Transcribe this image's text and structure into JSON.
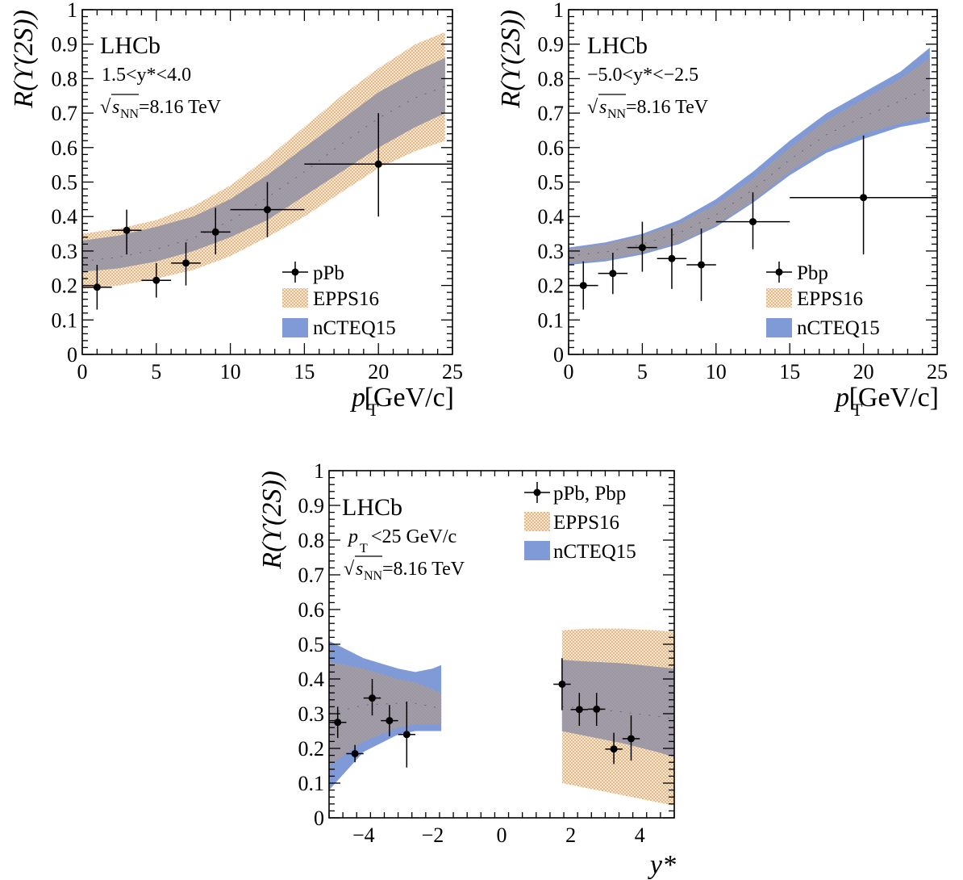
{
  "colors": {
    "epps16": "#e3b98a",
    "epps16_bg": "#f6e7d3",
    "nctet15": "#7f9ad6",
    "overlap": "#a39da6",
    "data": "#000000"
  },
  "chart_data": [
    {
      "type": "scatter",
      "experiment": "LHCb",
      "selection": "1.5<y*<4.0",
      "energy_prefix": "√",
      "energy_symbol": "s",
      "energy_subscript": "NN",
      "energy_value": "=8.16 TeV",
      "xlabel": "p",
      "xlabel_sub": "T",
      "xlabel_unit": "[GeV/c]",
      "ylabel": "R(ϒ(2S))",
      "xlim": [
        0,
        25
      ],
      "ylim": [
        0,
        1
      ],
      "xticks": [
        0,
        5,
        10,
        15,
        20,
        25
      ],
      "yticks": [
        0,
        0.1,
        0.2,
        0.3,
        0.4,
        0.5,
        0.6,
        0.7,
        0.8,
        0.9,
        1
      ],
      "legend_position": "lower-right",
      "legend": [
        "pPb",
        "EPPS16",
        "nCTEQ15"
      ],
      "points": [
        {
          "x": 1,
          "xerr": 1,
          "y": 0.195,
          "ylo": 0.13,
          "yhi": 0.26
        },
        {
          "x": 3,
          "xerr": 1,
          "y": 0.36,
          "ylo": 0.29,
          "yhi": 0.42
        },
        {
          "x": 5,
          "xerr": 1,
          "y": 0.215,
          "ylo": 0.165,
          "yhi": 0.265
        },
        {
          "x": 7,
          "xerr": 1,
          "y": 0.265,
          "ylo": 0.2,
          "yhi": 0.325
        },
        {
          "x": 9,
          "xerr": 1,
          "y": 0.355,
          "ylo": 0.29,
          "yhi": 0.425
        },
        {
          "x": 12.5,
          "xerr": 2.5,
          "y": 0.42,
          "ylo": 0.34,
          "yhi": 0.5
        },
        {
          "x": 20,
          "xerr": 5,
          "y": 0.552,
          "ylo": 0.4,
          "yhi": 0.7
        }
      ],
      "bands": {
        "epps16": {
          "x": [
            0,
            2.5,
            5,
            7.5,
            10,
            12.5,
            15,
            17.5,
            20,
            22.5,
            24.5
          ],
          "lo": [
            0.19,
            0.2,
            0.22,
            0.245,
            0.285,
            0.34,
            0.4,
            0.47,
            0.54,
            0.59,
            0.62
          ],
          "hi": [
            0.35,
            0.365,
            0.39,
            0.43,
            0.49,
            0.57,
            0.66,
            0.75,
            0.83,
            0.9,
            0.935
          ]
        },
        "nctet15": {
          "x": [
            0,
            2.5,
            5,
            7.5,
            10,
            12.5,
            15,
            17.5,
            20,
            22.5,
            24.5
          ],
          "lo": [
            0.24,
            0.25,
            0.27,
            0.3,
            0.34,
            0.39,
            0.46,
            0.53,
            0.6,
            0.66,
            0.7
          ],
          "hi": [
            0.33,
            0.345,
            0.37,
            0.4,
            0.45,
            0.52,
            0.6,
            0.68,
            0.76,
            0.82,
            0.86
          ]
        }
      }
    },
    {
      "type": "scatter",
      "experiment": "LHCb",
      "selection": "−5.0<y*<−2.5",
      "energy_prefix": "√",
      "energy_symbol": "s",
      "energy_subscript": "NN",
      "energy_value": "=8.16 TeV",
      "xlabel": "p",
      "xlabel_sub": "T",
      "xlabel_unit": "[GeV/c]",
      "ylabel": "R(ϒ(2S))",
      "xlim": [
        0,
        25
      ],
      "ylim": [
        0,
        1
      ],
      "xticks": [
        0,
        5,
        10,
        15,
        20,
        25
      ],
      "yticks": [
        0,
        0.1,
        0.2,
        0.3,
        0.4,
        0.5,
        0.6,
        0.7,
        0.8,
        0.9,
        1
      ],
      "legend_position": "lower-right",
      "legend": [
        "Pbp",
        "EPPS16",
        "nCTEQ15"
      ],
      "points": [
        {
          "x": 1,
          "xerr": 1,
          "y": 0.2,
          "ylo": 0.13,
          "yhi": 0.27
        },
        {
          "x": 3,
          "xerr": 1,
          "y": 0.235,
          "ylo": 0.175,
          "yhi": 0.295
        },
        {
          "x": 5,
          "xerr": 1,
          "y": 0.31,
          "ylo": 0.24,
          "yhi": 0.385
        },
        {
          "x": 7,
          "xerr": 1,
          "y": 0.278,
          "ylo": 0.19,
          "yhi": 0.365
        },
        {
          "x": 9,
          "xerr": 1,
          "y": 0.26,
          "ylo": 0.155,
          "yhi": 0.365
        },
        {
          "x": 12.5,
          "xerr": 2.5,
          "y": 0.385,
          "ylo": 0.305,
          "yhi": 0.47
        },
        {
          "x": 20,
          "xerr": 5,
          "y": 0.455,
          "ylo": 0.29,
          "yhi": 0.635
        }
      ],
      "bands": {
        "epps16": {
          "x": [
            0,
            2.5,
            5,
            7.5,
            10,
            12.5,
            15,
            17.5,
            20,
            22.5,
            24.5
          ],
          "lo": [
            0.265,
            0.275,
            0.295,
            0.325,
            0.375,
            0.445,
            0.53,
            0.595,
            0.64,
            0.67,
            0.69
          ],
          "hi": [
            0.305,
            0.32,
            0.345,
            0.38,
            0.435,
            0.51,
            0.6,
            0.68,
            0.74,
            0.8,
            0.86
          ]
        },
        "nctet15": {
          "x": [
            0,
            2.5,
            5,
            7.5,
            10,
            12.5,
            15,
            17.5,
            20,
            22.5,
            24.5
          ],
          "lo": [
            0.26,
            0.27,
            0.29,
            0.32,
            0.37,
            0.44,
            0.52,
            0.585,
            0.625,
            0.66,
            0.675
          ],
          "hi": [
            0.31,
            0.325,
            0.35,
            0.39,
            0.45,
            0.53,
            0.62,
            0.7,
            0.76,
            0.82,
            0.89
          ]
        }
      }
    },
    {
      "type": "scatter",
      "experiment": "LHCb",
      "selection_symbol": "p",
      "selection_sub": "T",
      "selection_rest": "<25 GeV/c",
      "energy_prefix": "√",
      "energy_symbol": "s",
      "energy_subscript": "NN",
      "energy_value": "=8.16 TeV",
      "xlabel": "y*",
      "ylabel": "R(ϒ(2S))",
      "xlim": [
        -5,
        5
      ],
      "ylim": [
        0,
        1
      ],
      "xticks": [
        -4,
        -2,
        0,
        2,
        4
      ],
      "yticks": [
        0,
        0.1,
        0.2,
        0.3,
        0.4,
        0.5,
        0.6,
        0.7,
        0.8,
        0.9,
        1
      ],
      "legend_position": "top-right",
      "legend": [
        "pPb, Pbp",
        "EPPS16",
        "nCTEQ15"
      ],
      "points": [
        {
          "x": -4.75,
          "xerr": 0.25,
          "y": 0.275,
          "ylo": 0.23,
          "yhi": 0.32
        },
        {
          "x": -4.25,
          "xerr": 0.25,
          "y": 0.185,
          "ylo": 0.16,
          "yhi": 0.21
        },
        {
          "x": -3.75,
          "xerr": 0.25,
          "y": 0.345,
          "ylo": 0.295,
          "yhi": 0.4
        },
        {
          "x": -3.25,
          "xerr": 0.25,
          "y": 0.28,
          "ylo": 0.235,
          "yhi": 0.325
        },
        {
          "x": -2.75,
          "xerr": 0.25,
          "y": 0.24,
          "ylo": 0.145,
          "yhi": 0.335
        },
        {
          "x": 1.75,
          "xerr": 0.25,
          "y": 0.385,
          "ylo": 0.31,
          "yhi": 0.46
        },
        {
          "x": 2.25,
          "xerr": 0.25,
          "y": 0.312,
          "ylo": 0.265,
          "yhi": 0.36
        },
        {
          "x": 2.75,
          "xerr": 0.25,
          "y": 0.313,
          "ylo": 0.265,
          "yhi": 0.36
        },
        {
          "x": 3.25,
          "xerr": 0.25,
          "y": 0.198,
          "ylo": 0.155,
          "yhi": 0.245
        },
        {
          "x": 3.75,
          "xerr": 0.25,
          "y": 0.228,
          "ylo": 0.165,
          "yhi": 0.295
        }
      ],
      "bands": {
        "epps16": [
          {
            "x": [
              -5,
              -4,
              -3,
              -2.5,
              -2,
              -1.75
            ],
            "lo": [
              0.15,
              0.22,
              0.26,
              0.27,
              0.27,
              0.27
            ],
            "hi": [
              0.45,
              0.43,
              0.4,
              0.39,
              0.37,
              0.36
            ]
          },
          {
            "x": [
              1.75,
              2.5,
              3.5,
              4.5,
              5
            ],
            "lo": [
              0.1,
              0.085,
              0.065,
              0.045,
              0.035
            ],
            "hi": [
              0.54,
              0.545,
              0.545,
              0.54,
              0.535
            ]
          }
        ],
        "nctet15": [
          {
            "x": [
              -5,
              -4,
              -3,
              -2.5,
              -2,
              -1.75
            ],
            "lo": [
              0.08,
              0.19,
              0.24,
              0.25,
              0.25,
              0.25
            ],
            "hi": [
              0.51,
              0.46,
              0.43,
              0.42,
              0.43,
              0.44
            ]
          },
          {
            "x": [
              1.75,
              2.5,
              3.5,
              4.5,
              5
            ],
            "lo": [
              0.25,
              0.235,
              0.215,
              0.19,
              0.175
            ],
            "hi": [
              0.455,
              0.45,
              0.445,
              0.435,
              0.43
            ]
          }
        ]
      }
    }
  ]
}
